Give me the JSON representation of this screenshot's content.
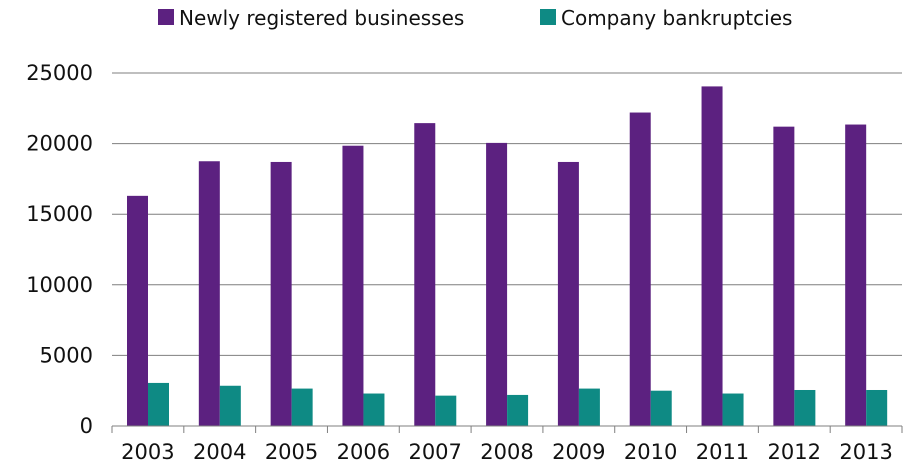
{
  "chart_data": {
    "type": "bar",
    "title": "",
    "xlabel": "",
    "ylabel": "",
    "categories": [
      "2003",
      "2004",
      "2005",
      "2006",
      "2007",
      "2008",
      "2009",
      "2010",
      "2011",
      "2012",
      "2013"
    ],
    "series": [
      {
        "name": "Newly registered businesses",
        "color": "#5c2180",
        "values": [
          16300,
          18750,
          18700,
          19850,
          21450,
          20050,
          18700,
          22200,
          24050,
          21200,
          21350
        ]
      },
      {
        "name": "Company bankruptcies",
        "color": "#0e8a84",
        "values": [
          3050,
          2850,
          2650,
          2300,
          2150,
          2200,
          2650,
          2500,
          2300,
          2550,
          2550
        ]
      }
    ],
    "ylim": [
      0,
      25000
    ],
    "yticks": [
      "0",
      "5000",
      "10000",
      "15000",
      "20000",
      "25000"
    ],
    "grid": true,
    "legend_position": "top-center",
    "gridline_color": "#7f7f7f"
  }
}
